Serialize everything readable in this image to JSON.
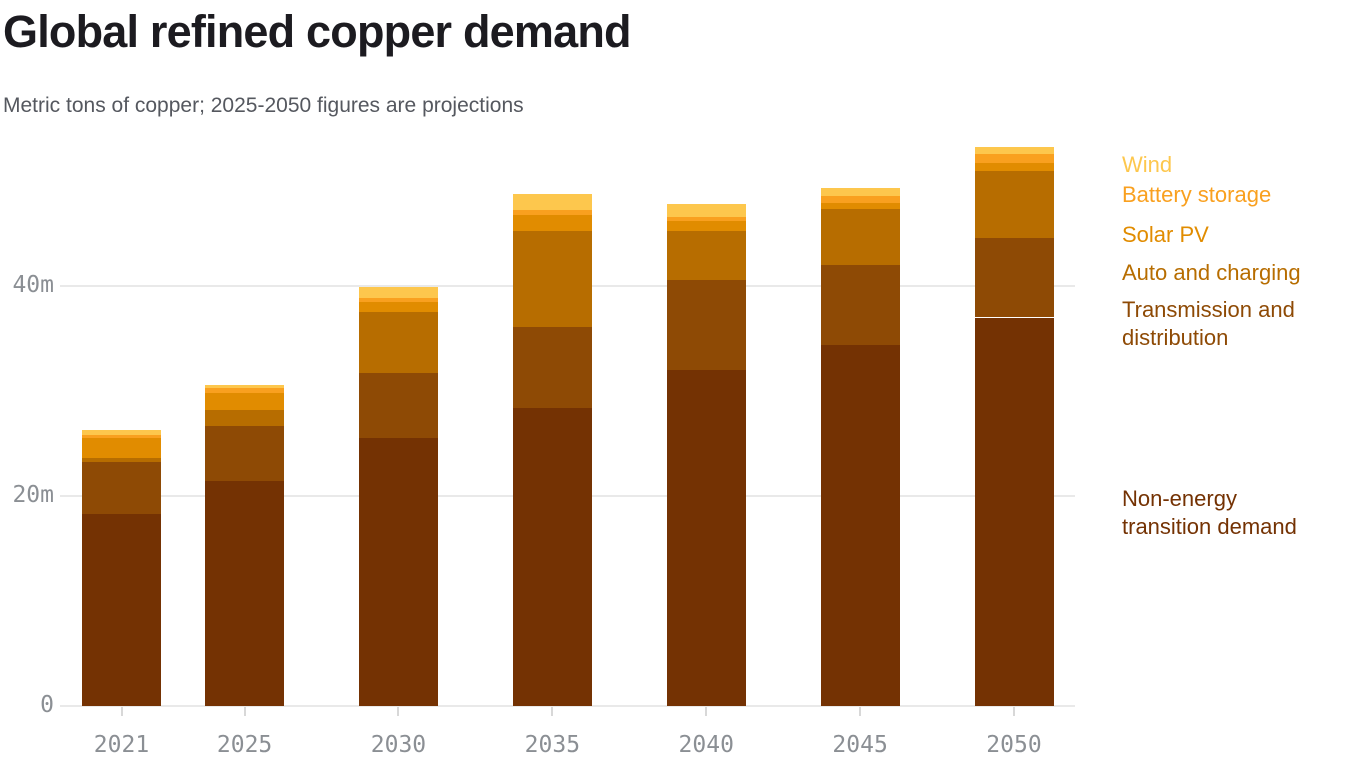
{
  "header": {
    "title": "Global refined copper demand",
    "subtitle": "Metric tons of copper; 2025‑2050 figures are projections"
  },
  "chart_data": {
    "type": "bar",
    "stacked": true,
    "title": "Global refined copper demand",
    "subtitle": "Metric tons of copper; 2025-2050 figures are projections",
    "unit": "million metric tons of copper",
    "categories": [
      "2021",
      "2025",
      "2030",
      "2035",
      "2040",
      "2045",
      "2050"
    ],
    "x_values_are_years": true,
    "series": [
      {
        "name": "Non-energy transition demand",
        "color": "#743203",
        "values": [
          18.3,
          21.4,
          25.5,
          28.4,
          32.0,
          34.4,
          37.0
        ]
      },
      {
        "name": "Transmission and distribution",
        "color": "#8e4a05",
        "values": [
          4.9,
          5.3,
          6.2,
          7.7,
          8.6,
          7.6,
          7.6
        ]
      },
      {
        "name": "Auto and charging",
        "color": "#b76d00",
        "values": [
          0.4,
          1.5,
          5.8,
          9.1,
          4.6,
          5.3,
          6.4
        ]
      },
      {
        "name": "Solar PV",
        "color": "#e18c00",
        "values": [
          1.9,
          1.6,
          1.0,
          1.6,
          1.0,
          0.6,
          0.75
        ]
      },
      {
        "name": "Battery storage",
        "color": "#f9a01f",
        "values": [
          0.3,
          0.5,
          0.35,
          0.4,
          0.4,
          0.7,
          0.8
        ]
      },
      {
        "name": "Wind",
        "color": "#fdc74d",
        "values": [
          0.5,
          0.3,
          1.05,
          1.6,
          1.2,
          0.7,
          0.7
        ]
      }
    ],
    "totals": [
      26.3,
      30.6,
      39.9,
      48.8,
      47.8,
      49.3,
      53.25
    ],
    "ylim": [
      0,
      56
    ],
    "yticks": [
      {
        "value": 0,
        "label": "0"
      },
      {
        "value": 20,
        "label": "20m"
      },
      {
        "value": 40,
        "label": "40m"
      }
    ],
    "grid": "horizontal",
    "legend_position": "right",
    "legend": [
      {
        "label": "Wind",
        "color": "#fdc74d"
      },
      {
        "label": "Battery storage",
        "color": "#f9a01f"
      },
      {
        "label": "Solar PV",
        "color": "#e18c00"
      },
      {
        "label": "Auto and charging",
        "color": "#b76d00"
      },
      {
        "label": "Transmission and\ndistribution",
        "color": "#8e4a05"
      },
      {
        "label": "Non-energy\ntransition demand",
        "color": "#743203"
      }
    ]
  }
}
